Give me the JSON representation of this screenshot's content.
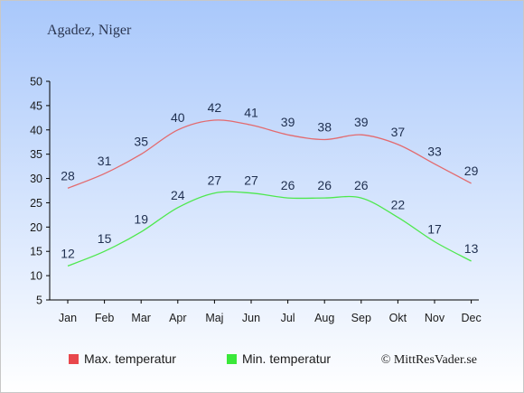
{
  "chart_data": {
    "type": "line",
    "title": "Agadez, Niger",
    "xlabel": "",
    "ylabel": "",
    "categories": [
      "Jan",
      "Feb",
      "Mar",
      "Apr",
      "Maj",
      "Jun",
      "Jul",
      "Aug",
      "Sep",
      "Okt",
      "Nov",
      "Dec"
    ],
    "ylim": [
      5,
      50
    ],
    "yticks": [
      5,
      10,
      15,
      20,
      25,
      30,
      35,
      40,
      45,
      50
    ],
    "grid": false,
    "legend_position": "bottom",
    "series": [
      {
        "name": "Max. temperatur",
        "color": "#e8474c",
        "line_color": "#e36a6e",
        "values": [
          28,
          31,
          35,
          40,
          42,
          41,
          39,
          38,
          39,
          37,
          33,
          29
        ]
      },
      {
        "name": "Min. temperatur",
        "color": "#3ae83a",
        "line_color": "#4ee84e",
        "values": [
          12,
          15,
          19,
          24,
          27,
          27,
          26,
          26,
          26,
          22,
          17,
          13
        ]
      }
    ],
    "credit": "© MittResVader.se",
    "background_top": "#a9c8fb",
    "background_bottom": "#ffffff"
  }
}
